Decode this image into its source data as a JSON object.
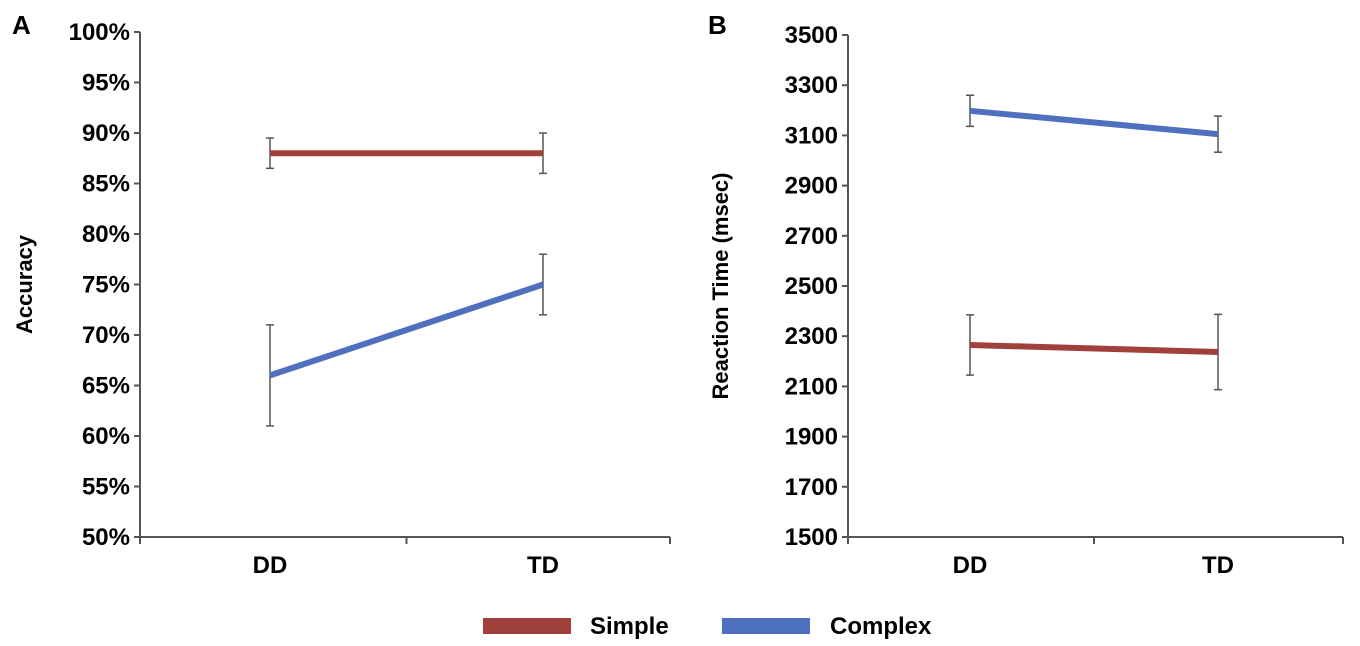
{
  "chart_data": [
    {
      "panel_label": "A",
      "type": "line",
      "categories": [
        "DD",
        "TD"
      ],
      "ylabel": "Accuracy",
      "xlabel": "",
      "ylim": [
        0.5,
        1.0
      ],
      "yticks": [
        0.5,
        0.55,
        0.6,
        0.65,
        0.7,
        0.75,
        0.8,
        0.85,
        0.9,
        0.95,
        1.0
      ],
      "ytick_labels": [
        "50%",
        "55%",
        "60%",
        "65%",
        "70%",
        "75%",
        "80%",
        "85%",
        "90%",
        "95%",
        "100%"
      ],
      "grid": false,
      "series": [
        {
          "name": "Simple",
          "color": "#a0403a",
          "values": [
            0.88,
            0.88
          ],
          "errors": [
            0.015,
            0.02
          ]
        },
        {
          "name": "Complex",
          "color": "#4f6fbf",
          "values": [
            0.66,
            0.75
          ],
          "errors": [
            0.05,
            0.03
          ]
        }
      ]
    },
    {
      "panel_label": "B",
      "type": "line",
      "categories": [
        "DD",
        "TD"
      ],
      "ylabel": "Reaction Time (msec)",
      "xlabel": "",
      "ylim": [
        1500,
        3500
      ],
      "yticks": [
        1500,
        1700,
        1900,
        2100,
        2300,
        2500,
        2700,
        2900,
        3100,
        3300,
        3500
      ],
      "ytick_labels": [
        "1500",
        "1700",
        "1900",
        "2100",
        "2300",
        "2500",
        "2700",
        "2900",
        "3100",
        "3300",
        "3500"
      ],
      "grid": false,
      "series": [
        {
          "name": "Simple",
          "color": "#a0403a",
          "values": [
            2265,
            2237
          ],
          "errors": [
            120,
            150
          ]
        },
        {
          "name": "Complex",
          "color": "#4f6fbf",
          "values": [
            3198,
            3105
          ],
          "errors": [
            62,
            72
          ]
        }
      ]
    }
  ],
  "legend": {
    "placement": "bottom-center",
    "items": [
      {
        "label": "Simple",
        "color": "#a0403a"
      },
      {
        "label": "Complex",
        "color": "#4f6fbf"
      }
    ]
  }
}
